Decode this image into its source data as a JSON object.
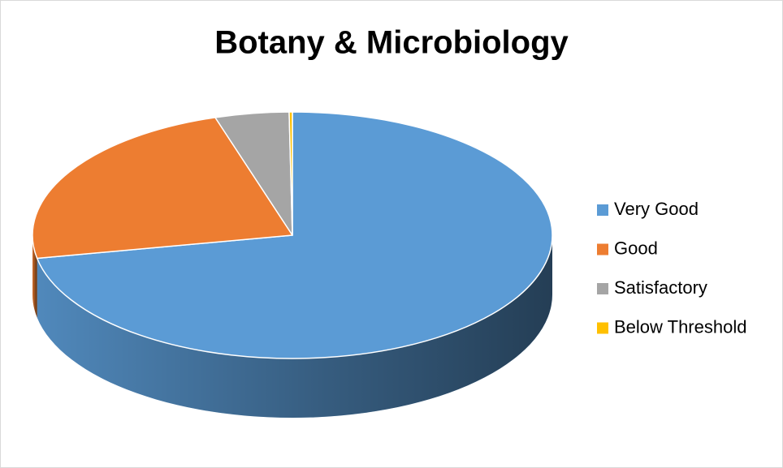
{
  "chart_data": {
    "type": "pie",
    "title": "Botany & Microbiology",
    "categories": [
      "Very Good",
      "Good",
      "Satisfactory",
      "Below Threshold"
    ],
    "values": [
      72,
      23.2,
      4.6,
      0.2
    ],
    "colors": [
      "#5b9bd5",
      "#ed7d31",
      "#a5a5a5",
      "#ffc000"
    ],
    "legend": "right"
  }
}
